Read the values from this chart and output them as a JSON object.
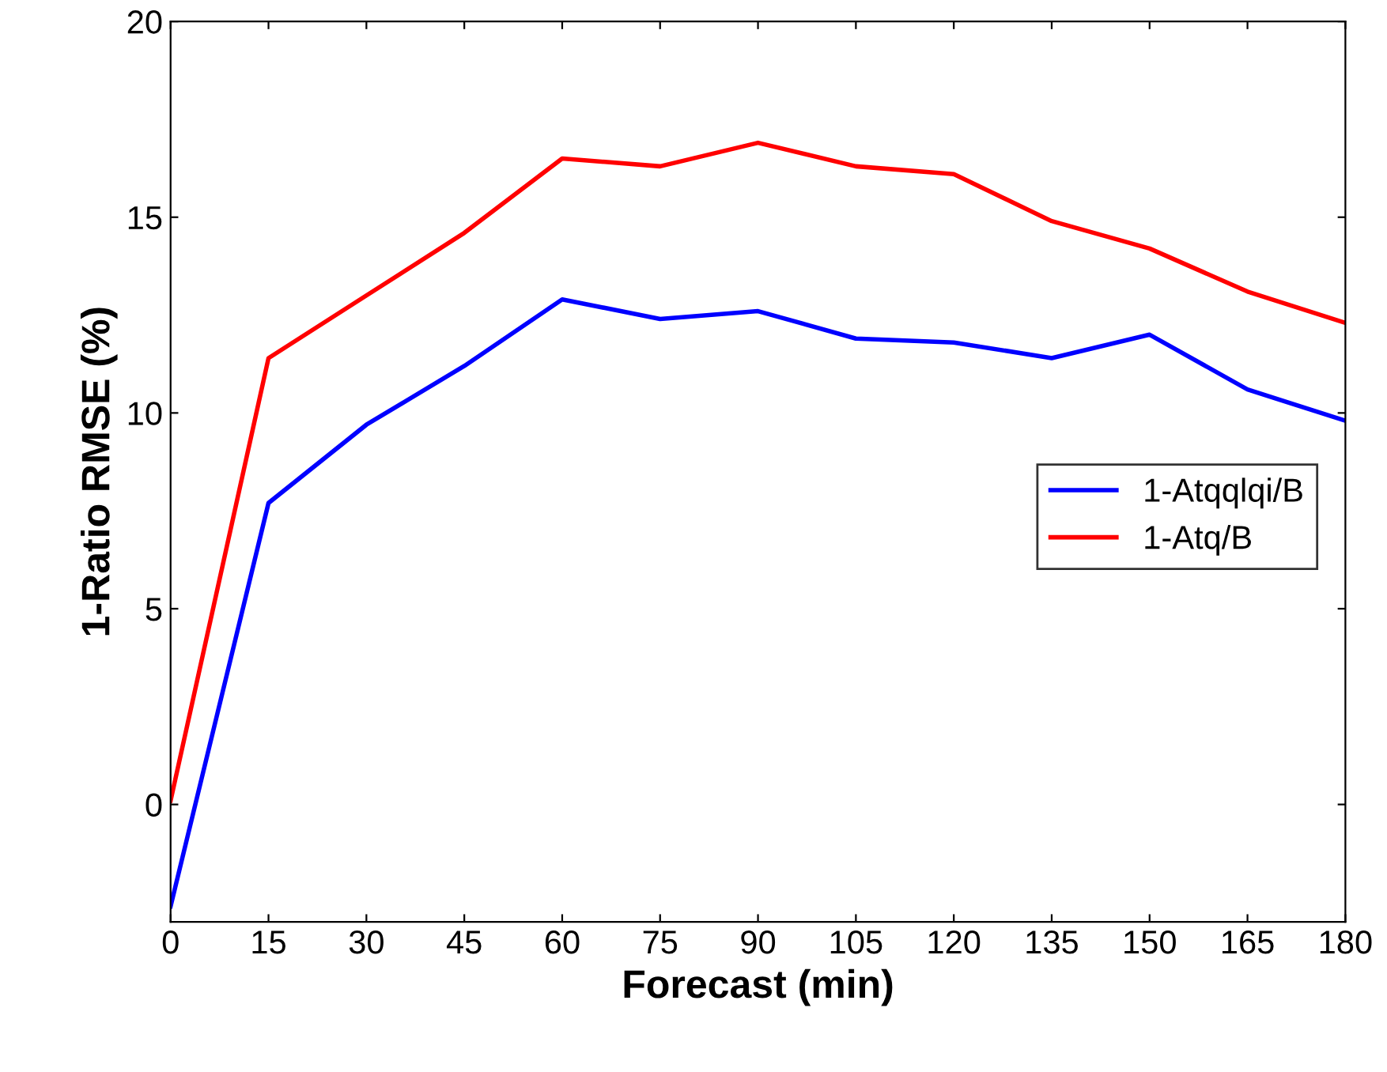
{
  "chart_data": {
    "type": "line",
    "xlabel": "Forecast (min)",
    "ylabel": "1-Ratio RMSE (%)",
    "x": [
      0,
      15,
      30,
      45,
      60,
      75,
      90,
      105,
      120,
      135,
      150,
      165,
      180
    ],
    "series": [
      {
        "name": "1-Atqqlqi/B",
        "color": "#0000ff",
        "values": [
          -2.6,
          7.7,
          9.7,
          11.2,
          12.9,
          12.4,
          12.6,
          11.9,
          11.8,
          11.4,
          12.0,
          10.6,
          9.8
        ]
      },
      {
        "name": "1-Atq/B",
        "color": "#ff0000",
        "values": [
          0.1,
          11.4,
          13.0,
          14.6,
          16.5,
          16.3,
          16.9,
          16.3,
          16.1,
          14.9,
          14.2,
          13.1,
          12.3
        ]
      }
    ],
    "xlim": [
      0,
      180
    ],
    "xticks": [
      0,
      15,
      30,
      45,
      60,
      75,
      90,
      105,
      120,
      135,
      150,
      165,
      180
    ],
    "ylim": [
      -3,
      20
    ],
    "yticks": [
      0,
      5,
      10,
      15,
      20
    ],
    "grid": false,
    "legend": "right",
    "marker": "none",
    "line_style": "solid"
  }
}
